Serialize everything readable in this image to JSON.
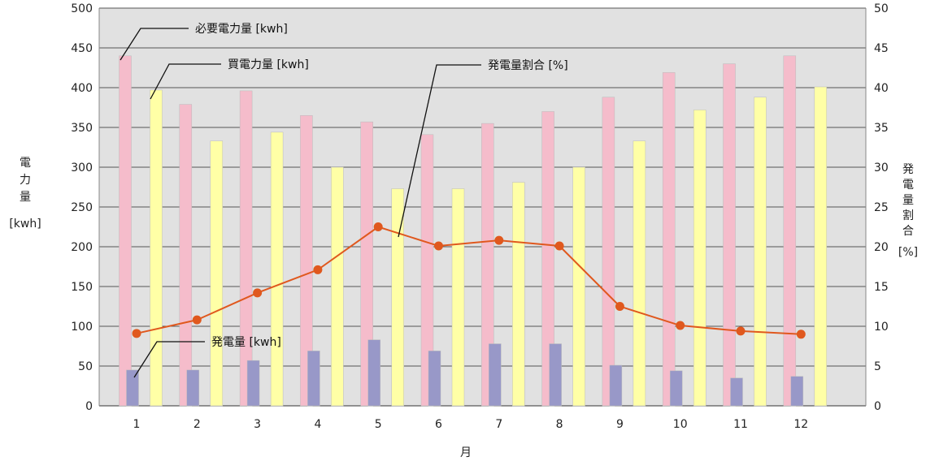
{
  "chart_data": {
    "type": "bar",
    "xlabel": "月",
    "ylabel_left": [
      "電",
      "力",
      "量",
      "[kwh]"
    ],
    "ylabel_right": [
      "発",
      "電",
      "量",
      "割",
      "合",
      "[%]"
    ],
    "categories": [
      "1",
      "2",
      "3",
      "4",
      "5",
      "6",
      "7",
      "8",
      "9",
      "10",
      "11",
      "12"
    ],
    "ylim_left": [
      0,
      500
    ],
    "ylim_right": [
      0,
      50
    ],
    "left_ticks": [
      "0",
      "50",
      "100",
      "150",
      "200",
      "250",
      "300",
      "350",
      "400",
      "450",
      "500"
    ],
    "right_ticks": [
      "0",
      "5",
      "10",
      "15",
      "20",
      "25",
      "30",
      "35",
      "40",
      "45",
      "50"
    ],
    "grid": true,
    "series": [
      {
        "name": "必要電力量 [kwh]",
        "kind": "bar",
        "axis": "left",
        "color": "#F5BCCB",
        "values": [
          440,
          379,
          396,
          365,
          357,
          341,
          355,
          370,
          388,
          419,
          430,
          440
        ]
      },
      {
        "name": "買電力量 [kwh]",
        "kind": "bar",
        "axis": "left",
        "color": "#FFFFA6",
        "values": [
          397,
          333,
          344,
          300,
          273,
          273,
          281,
          300,
          333,
          372,
          388,
          401
        ]
      },
      {
        "name": "発電量 [kwh]",
        "kind": "bar",
        "axis": "left",
        "color": "#9898C8",
        "values": [
          45,
          45,
          57,
          69,
          83,
          69,
          78,
          78,
          51,
          44,
          35,
          37
        ]
      },
      {
        "name": "発電量割合 [%]",
        "kind": "line",
        "axis": "right",
        "color": "#E0581E",
        "values": [
          9.1,
          10.8,
          14.2,
          17.1,
          22.5,
          20.1,
          20.8,
          20.1,
          12.5,
          10.1,
          9.4,
          9.0
        ]
      }
    ]
  }
}
